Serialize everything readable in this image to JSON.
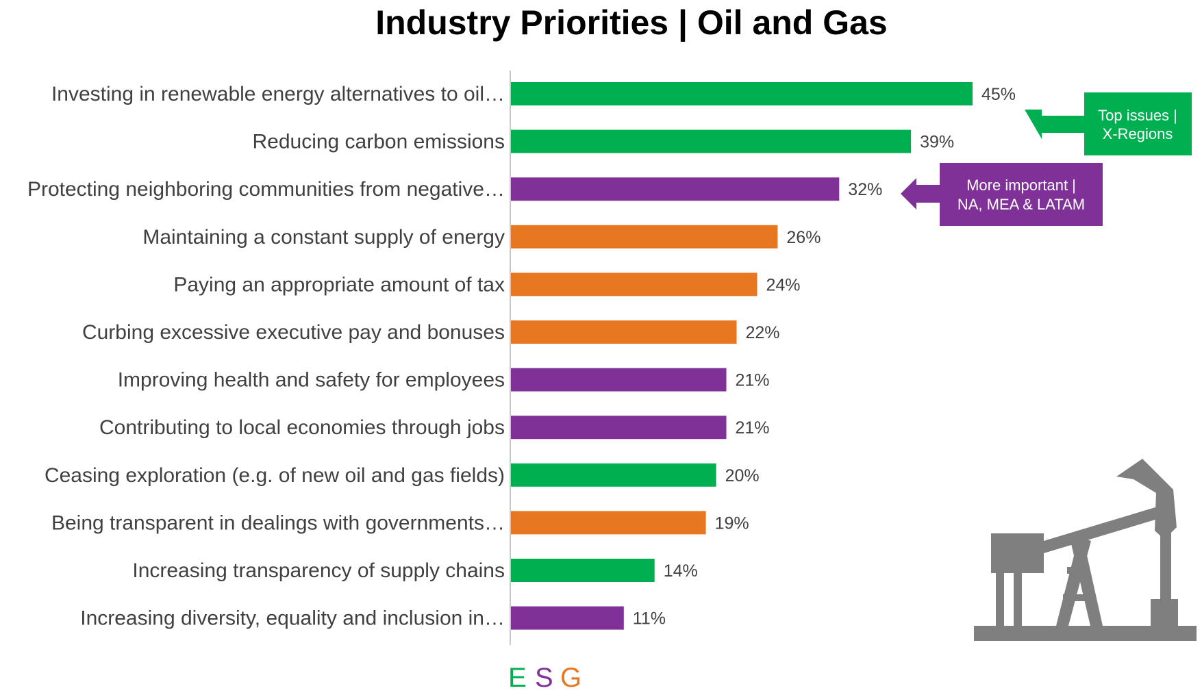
{
  "chart_data": {
    "type": "bar",
    "orientation": "horizontal",
    "title": "Industry Priorities | Oil and Gas",
    "categories": [
      "Investing in renewable energy alternatives to oil…",
      "Reducing carbon emissions",
      "Protecting neighboring communities from negative…",
      "Maintaining a constant supply of energy",
      "Paying an appropriate amount of tax",
      "Curbing excessive executive pay and bonuses",
      "Improving health and safety for employees",
      "Contributing to local economies through jobs",
      "Ceasing exploration (e.g. of new oil and gas fields)",
      "Being transparent in dealings with governments…",
      "Increasing transparency of supply chains",
      "Increasing diversity, equality and inclusion in…"
    ],
    "values": [
      45,
      39,
      32,
      26,
      24,
      22,
      21,
      21,
      20,
      19,
      14,
      11
    ],
    "value_labels": [
      "45%",
      "39%",
      "32%",
      "26%",
      "24%",
      "22%",
      "21%",
      "21%",
      "20%",
      "19%",
      "14%",
      "11%"
    ],
    "bar_groups": [
      "E",
      "E",
      "S",
      "G",
      "G",
      "G",
      "S",
      "S",
      "E",
      "G",
      "E",
      "S"
    ],
    "xlim": [
      0,
      50
    ],
    "grid": false,
    "legend": {
      "placement": "bottom",
      "items": [
        {
          "key": "E",
          "label": "E",
          "color": "#00B050"
        },
        {
          "key": "S",
          "label": "S",
          "color": "#7F3198"
        },
        {
          "key": "G",
          "label": "G",
          "color": "#E87722"
        }
      ]
    },
    "annotations": [
      {
        "text_line1": "Top issues |",
        "text_line2": "X-Regions",
        "color": "#00B050",
        "points_to": "Investing in renewable energy alternatives to oil… / Reducing carbon emissions"
      },
      {
        "text_line1": "More important |",
        "text_line2": "NA, MEA & LATAM",
        "color": "#7F3198",
        "points_to": "Protecting neighboring communities from negative…"
      }
    ]
  },
  "colors": {
    "E": "#00B050",
    "S": "#7F3198",
    "G": "#E87722",
    "axis": "#C8C8C8",
    "icon": "#7F7F7F"
  },
  "icons": {
    "illustration": "oil-pump-jack-icon",
    "arrow": "arrow-left-icon"
  }
}
